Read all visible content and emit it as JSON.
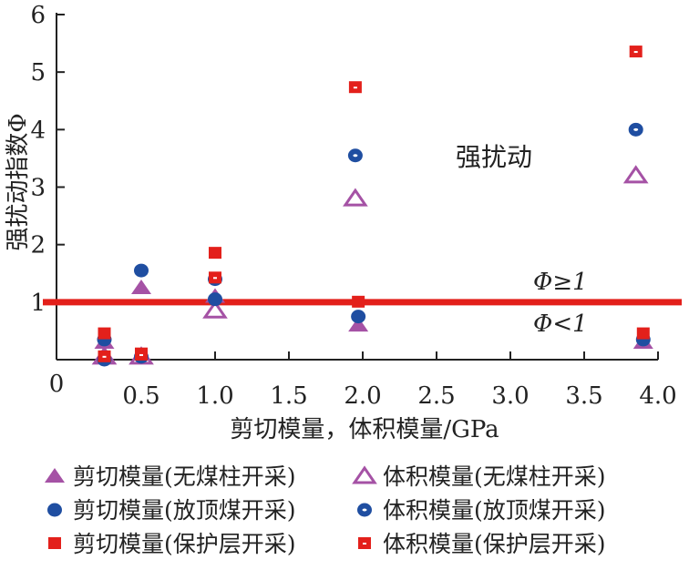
{
  "chart_data": {
    "type": "scatter",
    "title": "",
    "xlabel": "剪切模量，体积模量/GPa",
    "ylabel": "强扰动指数Φ",
    "xlim": [
      0,
      4.0
    ],
    "ylim": [
      0,
      6
    ],
    "xticks": [
      "0.5",
      "1.0",
      "1.5",
      "2.0",
      "2.5",
      "3.0",
      "3.5",
      "4.0"
    ],
    "xtick_values": [
      0.5,
      1.0,
      1.5,
      2.0,
      2.5,
      3.0,
      3.5,
      4.0
    ],
    "yticks": [
      "0",
      "1",
      "2",
      "3",
      "4",
      "5",
      "6"
    ],
    "ytick_values": [
      0,
      1,
      2,
      3,
      4,
      5,
      6
    ],
    "origin_label": "0",
    "threshold": {
      "value": 1,
      "color": "#e3201b"
    },
    "annotations": {
      "strong": "强扰动",
      "above": "Φ≥1",
      "below": "Φ<1"
    },
    "series": [
      {
        "name": "剪切模量(无煤柱开采)",
        "marker": "triangle-filled",
        "color": "#a552a5",
        "x": [
          0.25,
          0.5,
          1.0,
          1.97,
          3.9
        ],
        "y": [
          0.3,
          1.25,
          1.1,
          0.6,
          0.3
        ]
      },
      {
        "name": "体积模量(无煤柱开采)",
        "marker": "triangle-open",
        "color": "#a552a5",
        "x": [
          0.25,
          0.5,
          1.0,
          1.95,
          3.85
        ],
        "y": [
          0.05,
          0.05,
          0.85,
          2.8,
          3.2
        ]
      },
      {
        "name": "剪切模量(放顶煤开采)",
        "marker": "circle-filled",
        "color": "#1f4ea1",
        "x": [
          0.25,
          0.5,
          1.0,
          1.97,
          3.9
        ],
        "y": [
          0.35,
          1.55,
          1.05,
          0.75,
          0.35
        ]
      },
      {
        "name": "体积模量(放顶煤开采)",
        "marker": "circle-dot",
        "color": "#1f4ea1",
        "x": [
          0.25,
          0.5,
          1.0,
          1.95,
          3.85
        ],
        "y": [
          0.0,
          0.05,
          1.4,
          3.55,
          4.0
        ]
      },
      {
        "name": "剪切模量(保护层开采)",
        "marker": "square-filled",
        "color": "#e3201b",
        "x": [
          0.25,
          0.5,
          1.0,
          1.97,
          3.9
        ],
        "y": [
          0.45,
          0.1,
          1.85,
          1.0,
          0.45
        ]
      },
      {
        "name": "体积模量(保护层开采)",
        "marker": "square-dot",
        "color": "#e3201b",
        "x": [
          0.25,
          0.5,
          1.0,
          1.95,
          3.85
        ],
        "y": [
          0.05,
          0.08,
          1.42,
          4.73,
          5.35
        ]
      }
    ],
    "legend_placement": "bottom"
  }
}
